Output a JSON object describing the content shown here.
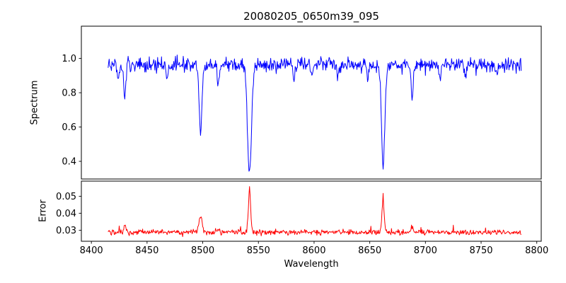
{
  "chart_data": {
    "type": "line",
    "title": "20080205_0650m39_095",
    "xlabel": "Wavelength",
    "grid": false,
    "legend": false,
    "x_ticks": [
      8400,
      8450,
      8500,
      8550,
      8600,
      8650,
      8700,
      8750,
      8800
    ],
    "x_axis_lim": [
      8391,
      8804
    ],
    "x_data_range": [
      8415,
      8786
    ],
    "x_step": 0.5,
    "panels": [
      {
        "ylabel": "Spectrum",
        "line_color": "#0000ff",
        "ylim": [
          0.297,
          1.188
        ],
        "y_ticks": [
          0.4,
          0.6,
          0.8,
          1.0
        ],
        "y_tick_labels": [
          "0.4",
          "0.6",
          "0.8",
          "1.0"
        ],
        "continuum_level": 0.965,
        "noise_sigma": 0.02,
        "absorption_lines": [
          {
            "center": 8424,
            "depth": 0.1,
            "width_sigma": 0.8
          },
          {
            "center": 8430,
            "depth": 0.19,
            "width_sigma": 0.9
          },
          {
            "center": 8468,
            "depth": 0.09,
            "width_sigma": 0.8
          },
          {
            "center": 8498,
            "depth": 0.4,
            "width_sigma": 1.3
          },
          {
            "center": 8514,
            "depth": 0.12,
            "width_sigma": 0.9
          },
          {
            "center": 8542,
            "depth": 0.63,
            "width_sigma": 1.8
          },
          {
            "center": 8582,
            "depth": 0.08,
            "width_sigma": 0.8
          },
          {
            "center": 8598,
            "depth": 0.07,
            "width_sigma": 0.8
          },
          {
            "center": 8621,
            "depth": 0.09,
            "width_sigma": 0.8
          },
          {
            "center": 8648,
            "depth": 0.07,
            "width_sigma": 0.8
          },
          {
            "center": 8662,
            "depth": 0.6,
            "width_sigma": 1.5
          },
          {
            "center": 8688,
            "depth": 0.21,
            "width_sigma": 0.9
          },
          {
            "center": 8713,
            "depth": 0.08,
            "width_sigma": 0.8
          },
          {
            "center": 8736,
            "depth": 0.07,
            "width_sigma": 0.8
          },
          {
            "center": 8764,
            "depth": 0.06,
            "width_sigma": 0.8
          }
        ]
      },
      {
        "ylabel": "Error",
        "line_color": "#ff0000",
        "ylim": [
          0.0235,
          0.0589
        ],
        "y_ticks": [
          0.03,
          0.04,
          0.05
        ],
        "y_tick_labels": [
          "0.03",
          "0.04",
          "0.05"
        ],
        "baseline_level": 0.0288,
        "noise_sigma": 0.0008,
        "error_peaks": [
          {
            "center": 8430,
            "height": 0.004,
            "width_sigma": 1.0
          },
          {
            "center": 8498,
            "height": 0.01,
            "width_sigma": 1.3
          },
          {
            "center": 8514,
            "height": 0.0025,
            "width_sigma": 0.9
          },
          {
            "center": 8542,
            "height": 0.026,
            "width_sigma": 1.0
          },
          {
            "center": 8662,
            "height": 0.018,
            "width_sigma": 1.0
          },
          {
            "center": 8688,
            "height": 0.004,
            "width_sigma": 0.9
          }
        ]
      }
    ]
  }
}
